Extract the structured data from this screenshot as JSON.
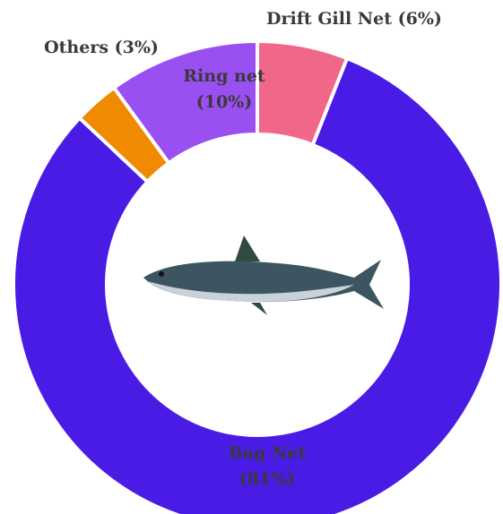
{
  "chart_data": {
    "type": "donut",
    "categories": [
      "Drift Gill Net",
      "Bag Net",
      "Others",
      "Ring net"
    ],
    "values": [
      6,
      81,
      3,
      10
    ],
    "value_labels": [
      "(6%)",
      "(81%)",
      "(3%)",
      "(10%)"
    ],
    "colors": [
      "#f0678a",
      "#4b1be6",
      "#f08a00",
      "#9a4ff0"
    ]
  }
}
